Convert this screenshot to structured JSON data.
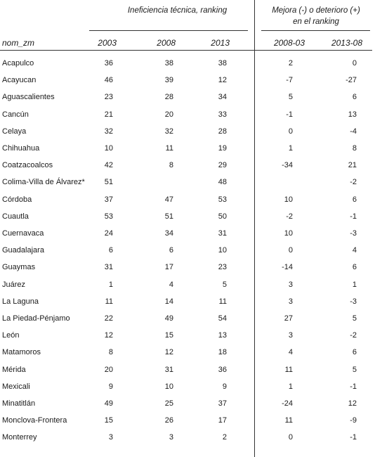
{
  "header": {
    "group_left": "Ineficiencia técnica, ranking",
    "group_right_line1": "Mejora (-) o deterioro (+)",
    "group_right_line2": "en el ranking",
    "columns": [
      "nom_zm",
      "2003",
      "2008",
      "2013",
      "2008-03",
      "2013-08"
    ]
  },
  "rows": [
    {
      "name": "Acapulco",
      "v2003": "36",
      "v2008": "38",
      "v2013": "38",
      "d0803": "2",
      "d1308": "0"
    },
    {
      "name": "Acayucan",
      "v2003": "46",
      "v2008": "39",
      "v2013": "12",
      "d0803": "-7",
      "d1308": "-27"
    },
    {
      "name": "Aguascalientes",
      "v2003": "23",
      "v2008": "28",
      "v2013": "34",
      "d0803": "5",
      "d1308": "6"
    },
    {
      "name": "Cancún",
      "v2003": "21",
      "v2008": "20",
      "v2013": "33",
      "d0803": "-1",
      "d1308": "13"
    },
    {
      "name": "Celaya",
      "v2003": "32",
      "v2008": "32",
      "v2013": "28",
      "d0803": "0",
      "d1308": "-4"
    },
    {
      "name": "Chihuahua",
      "v2003": "10",
      "v2008": "11",
      "v2013": "19",
      "d0803": "1",
      "d1308": "8"
    },
    {
      "name": "Coatzacoalcos",
      "v2003": "42",
      "v2008": "8",
      "v2013": "29",
      "d0803": "-34",
      "d1308": "21"
    },
    {
      "name": "Colima-Villa de Álvarez*",
      "v2003": "51",
      "v2008": "",
      "v2013": "48",
      "d0803": "",
      "d1308": "-2"
    },
    {
      "name": "Córdoba",
      "v2003": "37",
      "v2008": "47",
      "v2013": "53",
      "d0803": "10",
      "d1308": "6"
    },
    {
      "name": "Cuautla",
      "v2003": "53",
      "v2008": "51",
      "v2013": "50",
      "d0803": "-2",
      "d1308": "-1"
    },
    {
      "name": "Cuernavaca",
      "v2003": "24",
      "v2008": "34",
      "v2013": "31",
      "d0803": "10",
      "d1308": "-3"
    },
    {
      "name": "Guadalajara",
      "v2003": "6",
      "v2008": "6",
      "v2013": "10",
      "d0803": "0",
      "d1308": "4"
    },
    {
      "name": "Guaymas",
      "v2003": "31",
      "v2008": "17",
      "v2013": "23",
      "d0803": "-14",
      "d1308": "6"
    },
    {
      "name": "Juárez",
      "v2003": "1",
      "v2008": "4",
      "v2013": "5",
      "d0803": "3",
      "d1308": "1"
    },
    {
      "name": "La Laguna",
      "v2003": "11",
      "v2008": "14",
      "v2013": "11",
      "d0803": "3",
      "d1308": "-3"
    },
    {
      "name": "La Piedad-Pénjamo",
      "v2003": "22",
      "v2008": "49",
      "v2013": "54",
      "d0803": "27",
      "d1308": "5"
    },
    {
      "name": "León",
      "v2003": "12",
      "v2008": "15",
      "v2013": "13",
      "d0803": "3",
      "d1308": "-2"
    },
    {
      "name": "Matamoros",
      "v2003": "8",
      "v2008": "12",
      "v2013": "18",
      "d0803": "4",
      "d1308": "6"
    },
    {
      "name": "Mérida",
      "v2003": "20",
      "v2008": "31",
      "v2013": "36",
      "d0803": "11",
      "d1308": "5"
    },
    {
      "name": "Mexicali",
      "v2003": "9",
      "v2008": "10",
      "v2013": "9",
      "d0803": "1",
      "d1308": "-1"
    },
    {
      "name": "Minatitlán",
      "v2003": "49",
      "v2008": "25",
      "v2013": "37",
      "d0803": "-24",
      "d1308": "12"
    },
    {
      "name": "Monclova-Frontera",
      "v2003": "15",
      "v2008": "26",
      "v2013": "17",
      "d0803": "11",
      "d1308": "-9"
    },
    {
      "name": "Monterrey",
      "v2003": "3",
      "v2008": "3",
      "v2013": "2",
      "d0803": "0",
      "d1308": "-1"
    }
  ]
}
